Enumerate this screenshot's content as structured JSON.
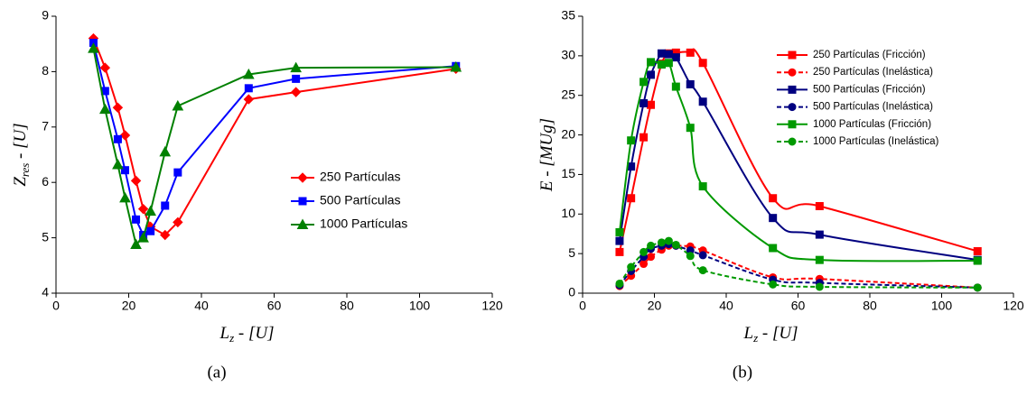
{
  "chart_data": [
    {
      "type": "line",
      "caption": "(a)",
      "xlabel": {
        "main": "L",
        "sub": "z",
        "rest": " - [U]"
      },
      "ylabel": {
        "main": "Z",
        "sub": "res",
        "rest": " - [U]"
      },
      "xlim": [
        0,
        120
      ],
      "xticks": [
        0,
        20,
        40,
        60,
        80,
        100,
        120
      ],
      "ylim": [
        4,
        9
      ],
      "yticks": [
        4,
        5,
        6,
        7,
        8,
        9
      ],
      "smooth": false,
      "legend": "right",
      "x": [
        10.3,
        13.5,
        17,
        19,
        22,
        24,
        26,
        30,
        33.5,
        53,
        66,
        110
      ],
      "series": [
        {
          "name": "250 Partículas",
          "color": "#ff0000",
          "marker": "diamond",
          "dash": false,
          "values": [
            8.6,
            8.07,
            7.35,
            6.85,
            6.03,
            5.52,
            5.2,
            5.05,
            5.28,
            7.5,
            7.63,
            8.05
          ]
        },
        {
          "name": "500 Partículas",
          "color": "#0000ff",
          "marker": "square",
          "dash": false,
          "values": [
            8.52,
            7.65,
            6.78,
            6.22,
            5.33,
            5.05,
            5.12,
            5.58,
            6.18,
            7.7,
            7.87,
            8.1
          ]
        },
        {
          "name": "1000 Partículas",
          "color": "#008000",
          "marker": "triangle",
          "dash": false,
          "values": [
            8.42,
            7.32,
            6.32,
            5.72,
            4.88,
            5.0,
            5.48,
            6.55,
            7.38,
            7.95,
            8.07,
            8.08
          ]
        }
      ]
    },
    {
      "type": "line",
      "caption": "(b)",
      "xlabel": {
        "main": "L",
        "sub": "z",
        "rest": " - [U]"
      },
      "ylabel": {
        "main": "E - [MUg]"
      },
      "xlim": [
        0,
        120
      ],
      "xticks": [
        0,
        20,
        40,
        60,
        80,
        100,
        120
      ],
      "ylim": [
        0,
        35
      ],
      "yticks": [
        0,
        5,
        10,
        15,
        20,
        25,
        30,
        35
      ],
      "smooth": true,
      "legend": "upper right",
      "x": [
        10.3,
        13.5,
        17,
        19,
        22,
        24,
        26,
        30,
        33.5,
        53,
        66,
        110
      ],
      "series": [
        {
          "name": "250 Partículas (Fricción)",
          "color": "#ff0000",
          "marker": "square",
          "dash": false,
          "values": [
            5.2,
            12,
            19.7,
            23.8,
            29,
            30.3,
            30.4,
            30.4,
            29.1,
            12,
            11,
            5.3
          ]
        },
        {
          "name": "250 Partículas (Inelástica)",
          "color": "#ff0000",
          "marker": "circle",
          "dash": true,
          "values": [
            0.9,
            2.2,
            3.7,
            4.6,
            5.5,
            6,
            6,
            5.9,
            5.4,
            2,
            1.8,
            0.7
          ]
        },
        {
          "name": "500 Partículas (Fricción)",
          "color": "#000080",
          "marker": "square",
          "dash": false,
          "values": [
            6.6,
            16,
            24,
            27.6,
            30.3,
            30.2,
            29.8,
            26.4,
            24.2,
            9.5,
            7.4,
            4.2
          ]
        },
        {
          "name": "500 Partículas (Inelástica)",
          "color": "#000080",
          "marker": "circle",
          "dash": true,
          "values": [
            1,
            2.8,
            4.6,
            5.6,
            6,
            6.2,
            6,
            5.4,
            4.8,
            1.7,
            1.3,
            0.7
          ]
        },
        {
          "name": "1000 Partículas (Fricción)",
          "color": "#009900",
          "marker": "square",
          "dash": false,
          "values": [
            7.7,
            19.3,
            26.7,
            29.2,
            28.9,
            29.1,
            26.1,
            20.9,
            13.5,
            5.7,
            4.2,
            4.1
          ]
        },
        {
          "name": "1000 Partículas (Inelástica)",
          "color": "#009900",
          "marker": "circle",
          "dash": true,
          "values": [
            1.2,
            3.3,
            5.2,
            6,
            6.4,
            6.6,
            6.1,
            4.7,
            2.9,
            1.1,
            0.8,
            0.7
          ]
        }
      ]
    }
  ]
}
